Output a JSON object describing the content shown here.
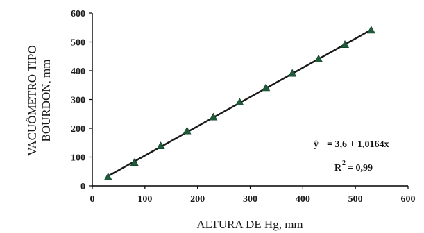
{
  "chart_data": {
    "type": "scatter",
    "xlabel": "ALTURA DE Hg, mm",
    "ylabel_lines": [
      "VACUÔMETRO TIPO",
      "BOURDON, mm"
    ],
    "xlim": [
      0,
      600
    ],
    "ylim": [
      0,
      600
    ],
    "x_ticks": [
      0,
      100,
      200,
      300,
      400,
      500,
      600
    ],
    "y_ticks": [
      0,
      100,
      200,
      300,
      400,
      500,
      600
    ],
    "grid": false,
    "series": [
      {
        "marker": "triangle",
        "color": "#1f5c3a",
        "points": [
          [
            30,
            30
          ],
          [
            80,
            80
          ],
          [
            130,
            138
          ],
          [
            180,
            190
          ],
          [
            230,
            238
          ],
          [
            280,
            290
          ],
          [
            330,
            340
          ],
          [
            380,
            390
          ],
          [
            430,
            440
          ],
          [
            480,
            490
          ],
          [
            530,
            540
          ]
        ]
      }
    ],
    "fit_line": {
      "color": "#1a1a1a",
      "intercept": 3.6,
      "slope": 1.0164,
      "x_range": [
        30,
        530
      ]
    },
    "annotations": {
      "equation_symbol": "ŷ",
      "equation_rhs": "= 3,6 + 1,0164x",
      "r2_base": "R",
      "r2_sup": "2",
      "r2_rhs": "= 0,99"
    }
  }
}
